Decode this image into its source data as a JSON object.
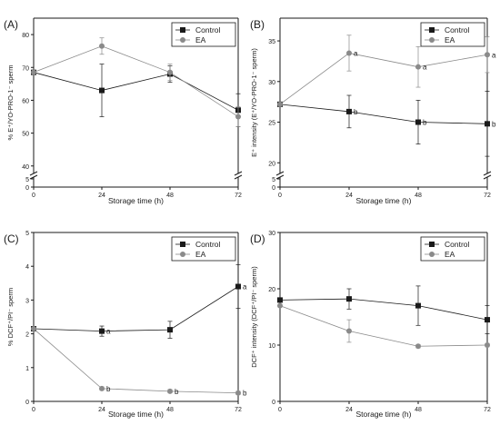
{
  "colors": {
    "control": "#1a1a1a",
    "ea": "#8a8a8a",
    "axis": "#1a1a1a"
  },
  "chart_data": [
    {
      "type": "line",
      "panel_label": "(A)",
      "xlabel": "Storage time (h)",
      "ylabel": "% E⁺/YO-PRO-1⁻ sperm",
      "x": [
        0,
        24,
        48,
        72
      ],
      "xlim": [
        0,
        72
      ],
      "xticks": [
        "0",
        "24",
        "48",
        "72"
      ],
      "ylim": [
        38,
        85
      ],
      "yticks": [
        0,
        5,
        40,
        50,
        60,
        70,
        80
      ],
      "axis_break": true,
      "legend_position": "top-right",
      "series": [
        {
          "name": "Control",
          "marker": "square",
          "values": [
            68.5,
            63,
            68,
            57
          ],
          "errors": [
            0,
            8,
            2.5,
            5
          ],
          "letters": [
            "",
            "",
            "",
            ""
          ]
        },
        {
          "name": "EA",
          "marker": "circle",
          "values": [
            68.5,
            76.5,
            68.5,
            55
          ],
          "errors": [
            0,
            2.5,
            2.5,
            3
          ],
          "letters": [
            "",
            "",
            "",
            ""
          ]
        }
      ]
    },
    {
      "type": "line",
      "panel_label": "(B)",
      "xlabel": "Storage time (h)",
      "ylabel": "E⁺ intensity (E⁺/YO-PRO-1⁻ sperm)",
      "x": [
        0,
        24,
        48,
        72
      ],
      "xlim": [
        0,
        72
      ],
      "xticks": [
        "0",
        "24",
        "48",
        "72"
      ],
      "ylim": [
        18.8,
        37.8
      ],
      "yticks": [
        0,
        5,
        20,
        25,
        30,
        35
      ],
      "axis_break": true,
      "legend_position": "top-right",
      "series": [
        {
          "name": "Control",
          "marker": "square",
          "values": [
            27.2,
            26.3,
            25,
            24.8
          ],
          "errors": [
            0,
            2,
            2.7,
            4
          ],
          "letters": [
            "",
            "b",
            "b",
            "b"
          ]
        },
        {
          "name": "EA",
          "marker": "circle",
          "values": [
            27.2,
            33.5,
            31.8,
            33.3
          ],
          "errors": [
            0,
            2.2,
            2.5,
            2.2
          ],
          "letters": [
            "",
            "a",
            "a",
            "a"
          ]
        }
      ]
    },
    {
      "type": "line",
      "panel_label": "(C)",
      "xlabel": "Storage time (h)",
      "ylabel": "% DCF⁺/PI⁻ sperm",
      "x": [
        0,
        24,
        48,
        72
      ],
      "xlim": [
        0,
        72
      ],
      "xticks": [
        "0",
        "24",
        "48",
        "72"
      ],
      "ylim": [
        0,
        5
      ],
      "yticks": [
        0,
        1,
        2,
        3,
        4,
        5
      ],
      "axis_break": false,
      "legend_position": "top-right",
      "series": [
        {
          "name": "Control",
          "marker": "square",
          "values": [
            2.15,
            2.08,
            2.12,
            3.4
          ],
          "errors": [
            0,
            0.15,
            0.25,
            0.65
          ],
          "letters": [
            "",
            "a",
            "",
            "a"
          ]
        },
        {
          "name": "EA",
          "marker": "circle",
          "values": [
            2.15,
            0.38,
            0.3,
            0.25
          ],
          "errors": [
            0,
            0.05,
            0.05,
            0.05
          ],
          "letters": [
            "",
            "b",
            "b",
            "b"
          ]
        }
      ]
    },
    {
      "type": "line",
      "panel_label": "(D)",
      "xlabel": "Storage time (h)",
      "ylabel": "DCF⁺ intensity (DCF⁺/PI⁻ sperm)",
      "x": [
        0,
        24,
        48,
        72
      ],
      "xlim": [
        0,
        72
      ],
      "xticks": [
        "0",
        "24",
        "48",
        "72"
      ],
      "ylim": [
        0,
        30
      ],
      "yticks": [
        0,
        10,
        20,
        30
      ],
      "axis_break": false,
      "legend_position": "top-right",
      "series": [
        {
          "name": "Control",
          "marker": "square",
          "values": [
            18,
            18.2,
            17,
            14.5
          ],
          "errors": [
            0,
            1.8,
            3.5,
            2.5
          ],
          "letters": [
            "",
            "",
            "",
            ""
          ]
        },
        {
          "name": "EA",
          "marker": "circle",
          "values": [
            17,
            12.5,
            9.8,
            10
          ],
          "errors": [
            0,
            2,
            0.3,
            0.3
          ],
          "letters": [
            "",
            "",
            "",
            ""
          ]
        }
      ]
    }
  ]
}
